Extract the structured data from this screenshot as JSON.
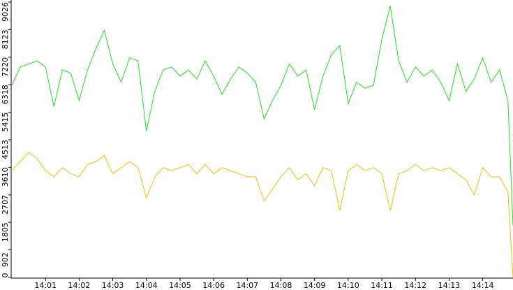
{
  "chart_data": {
    "type": "line",
    "x": [
      0,
      0.25,
      0.5,
      0.75,
      1,
      1.25,
      1.5,
      1.75,
      2,
      2.25,
      2.5,
      2.75,
      3,
      3.25,
      3.5,
      3.75,
      4,
      4.25,
      4.5,
      4.75,
      5,
      5.25,
      5.5,
      5.75,
      6,
      6.25,
      6.5,
      6.75,
      7,
      7.25,
      7.5,
      7.75,
      8,
      8.25,
      8.5,
      8.75,
      9,
      9.25,
      9.5,
      9.75,
      10,
      10.25,
      10.5,
      10.75,
      11,
      11.25,
      11.5,
      11.75,
      12,
      12.25,
      12.5,
      12.75,
      13,
      13.25,
      13.5,
      13.75,
      14,
      14.25,
      14.5,
      14.75,
      14.9
    ],
    "series": [
      {
        "color": "#1fe01f",
        "values": [
          6300,
          6900,
          7000,
          7100,
          6900,
          5600,
          6800,
          6700,
          5800,
          6800,
          7500,
          8100,
          7000,
          6400,
          7200,
          7100,
          4800,
          6100,
          6800,
          6900,
          6600,
          6800,
          6500,
          7100,
          6600,
          6000,
          6500,
          6900,
          6700,
          6400,
          5200,
          5800,
          6300,
          7000,
          6600,
          6800,
          5500,
          6600,
          7300,
          7600,
          5700,
          6400,
          6200,
          6300,
          7800,
          8900,
          7100,
          6400,
          6900,
          6600,
          6800,
          6400,
          5800,
          7000,
          6100,
          6500,
          7200,
          6400,
          6800,
          5800,
          1700
        ]
      },
      {
        "color": "#f0c000",
        "values": [
          3500,
          3800,
          4100,
          3900,
          3500,
          3300,
          3600,
          3400,
          3300,
          3700,
          3800,
          4000,
          3400,
          3600,
          3800,
          3600,
          2600,
          3300,
          3600,
          3500,
          3600,
          3700,
          3400,
          3700,
          3400,
          3600,
          3500,
          3400,
          3300,
          3300,
          2500,
          2900,
          3300,
          3600,
          3200,
          3400,
          3000,
          3600,
          3500,
          2200,
          3500,
          3700,
          3500,
          3600,
          3400,
          2200,
          3400,
          3500,
          3700,
          3500,
          3600,
          3500,
          3600,
          3400,
          3200,
          2700,
          3600,
          3300,
          3300,
          2800,
          0
        ]
      }
    ],
    "xlim": [
      0,
      14.9
    ],
    "xticks": [
      {
        "value": 1,
        "label": "14:01"
      },
      {
        "value": 2,
        "label": "14:02"
      },
      {
        "value": 3,
        "label": "14:03"
      },
      {
        "value": 4,
        "label": "14:04"
      },
      {
        "value": 5,
        "label": "14:05"
      },
      {
        "value": 6,
        "label": "14:06"
      },
      {
        "value": 7,
        "label": "14:07"
      },
      {
        "value": 8,
        "label": "14:08"
      },
      {
        "value": 9,
        "label": "14:09"
      },
      {
        "value": 10,
        "label": "14:10"
      },
      {
        "value": 11,
        "label": "14:11"
      },
      {
        "value": 12,
        "label": "14:12"
      },
      {
        "value": 13,
        "label": "14:13"
      },
      {
        "value": 14,
        "label": "14:14"
      }
    ],
    "ylim": [
      0,
      9026
    ],
    "yticks": [
      0,
      902,
      1805,
      2707,
      3610,
      4513,
      5415,
      6318,
      7220,
      8123,
      9026
    ]
  }
}
